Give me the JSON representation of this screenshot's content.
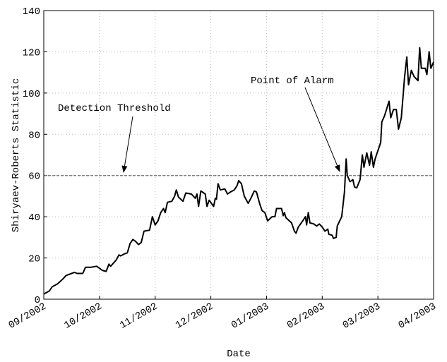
{
  "chart_data": {
    "type": "line",
    "xlabel": "Date",
    "ylabel": "Shiryaev-Roberts Statistic",
    "xlim": [
      0,
      7
    ],
    "xticks": [
      {
        "value": 0,
        "label": "09/2002"
      },
      {
        "value": 1,
        "label": "10/2002"
      },
      {
        "value": 2,
        "label": "11/2002"
      },
      {
        "value": 3,
        "label": "12/2002"
      },
      {
        "value": 4,
        "label": "01/2003"
      },
      {
        "value": 5,
        "label": "02/2003"
      },
      {
        "value": 6,
        "label": "03/2003"
      },
      {
        "value": 7,
        "label": "04/2003"
      }
    ],
    "ylim": [
      0,
      140
    ],
    "yticks": [
      0,
      20,
      40,
      60,
      80,
      100,
      120,
      140
    ],
    "grid": true,
    "color": "#000000",
    "threshold": 60,
    "threshold_color": "#808080",
    "annotations": [
      "Detection Threshold",
      "Point of Alarm"
    ],
    "x": [
      0,
      0.1,
      0.15,
      0.25,
      0.35,
      0.4,
      0.5,
      0.55,
      0.6,
      0.7,
      0.75,
      0.85,
      0.95,
      1.0,
      1.05,
      1.12,
      1.17,
      1.2,
      1.25,
      1.3,
      1.35,
      1.38,
      1.45,
      1.5,
      1.55,
      1.6,
      1.65,
      1.7,
      1.75,
      1.8,
      1.9,
      1.95,
      2.0,
      2.05,
      2.1,
      2.15,
      2.18,
      2.22,
      2.3,
      2.35,
      2.38,
      2.42,
      2.5,
      2.55,
      2.65,
      2.72,
      2.75,
      2.78,
      2.82,
      2.9,
      2.93,
      2.97,
      3.05,
      3.08,
      3.1,
      3.13,
      3.17,
      3.25,
      3.3,
      3.35,
      3.42,
      3.47,
      3.5,
      3.55,
      3.6,
      3.67,
      3.72,
      3.78,
      3.82,
      3.88,
      3.92,
      3.97,
      4.02,
      4.1,
      4.15,
      4.18,
      4.27,
      4.3,
      4.32,
      4.35,
      4.45,
      4.5,
      4.53,
      4.57,
      4.65,
      4.7,
      4.72,
      4.75,
      4.78,
      4.85,
      4.9,
      4.95,
      5.0,
      5.05,
      5.1,
      5.12,
      5.18,
      5.2,
      5.25,
      5.27,
      5.35,
      5.4,
      5.43,
      5.45,
      5.5,
      5.55,
      5.58,
      5.62,
      5.68,
      5.72,
      5.75,
      5.8,
      5.85,
      5.88,
      5.92,
      5.95,
      6.0,
      6.05,
      6.07,
      6.12,
      6.2,
      6.23,
      6.28,
      6.33,
      6.37,
      6.42,
      6.48,
      6.52,
      6.55,
      6.6,
      6.65,
      6.72,
      6.75,
      6.78,
      6.85,
      6.88,
      6.92,
      6.95,
      7.0
    ],
    "values": [
      2.5,
      4,
      6,
      7.5,
      10,
      11.5,
      12.5,
      13,
      12.5,
      12.5,
      15.5,
      15.5,
      16,
      15,
      14,
      13.5,
      17,
      16,
      17.5,
      19,
      21.5,
      21,
      22,
      22.5,
      27,
      29,
      28,
      26.5,
      27.5,
      33,
      33.5,
      40,
      36,
      38,
      42,
      44,
      42,
      47,
      47.5,
      50,
      53,
      49.5,
      47.5,
      51.5,
      51,
      49,
      51,
      45,
      52.5,
      51,
      45,
      48,
      45,
      49,
      48.5,
      56,
      53,
      53.5,
      51,
      52,
      53,
      55,
      57.5,
      56,
      50,
      46.5,
      49,
      52.5,
      52,
      46,
      43,
      42,
      38,
      40,
      40,
      44,
      44,
      40.5,
      42,
      39.5,
      37,
      33,
      32,
      35,
      38,
      40,
      36,
      42,
      37,
      36.5,
      35.5,
      36.5,
      35,
      33,
      34,
      31.5,
      31,
      29.5,
      30,
      35.5,
      40,
      52,
      68,
      60,
      57,
      58,
      54.5,
      54,
      58,
      70,
      64,
      71,
      65,
      71.5,
      64,
      68,
      72,
      76,
      86,
      89,
      96,
      88,
      92,
      92,
      82.5,
      88,
      108,
      117.5,
      104,
      111,
      108,
      106,
      122,
      112,
      112,
      109,
      120,
      112,
      115
    ]
  }
}
